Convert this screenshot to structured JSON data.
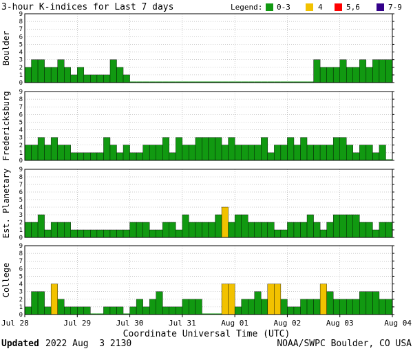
{
  "chart_data": {
    "type": "bar",
    "title": "3-hour K-indices for Last 7 days",
    "legend": {
      "label": "Legend:",
      "items": [
        {
          "label": "0-3",
          "color": "#119911"
        },
        {
          "label": "4",
          "color": "#f2c200"
        },
        {
          "label": "5,6",
          "color": "#ff0000"
        },
        {
          "label": "7-9",
          "color": "#33008a"
        }
      ]
    },
    "xlabel": "Coordinate Universal Time (UTC)",
    "x_ticks": [
      "Jul 28",
      "Jul 29",
      "Jul 30",
      "Jul 31",
      "Aug 01",
      "Aug 02",
      "Aug 03",
      "Aug 04"
    ],
    "y_ticks": [
      "0",
      "1",
      "2",
      "3",
      "4",
      "5",
      "6",
      "7",
      "8",
      "9"
    ],
    "ylim": [
      0,
      9
    ],
    "grid": true,
    "panels": [
      {
        "name": "Boulder",
        "values": [
          2,
          3,
          3,
          2,
          2,
          3,
          2,
          1,
          2,
          1,
          1,
          1,
          1,
          3,
          2,
          1,
          0,
          0,
          0,
          0,
          0,
          0,
          0,
          0,
          0,
          0,
          0,
          0,
          0,
          0,
          0,
          0,
          0,
          0,
          0,
          0,
          0,
          0,
          0,
          0,
          0,
          0,
          0,
          0,
          3,
          2,
          2,
          2,
          3,
          2,
          2,
          3,
          2,
          3,
          3,
          3,
          2,
          2,
          3,
          2,
          0
        ]
      },
      {
        "name": "Fredericksburg",
        "values": [
          2,
          2,
          3,
          2,
          3,
          2,
          2,
          1,
          1,
          1,
          1,
          1,
          3,
          2,
          1,
          2,
          1,
          1,
          2,
          2,
          2,
          3,
          1,
          3,
          2,
          2,
          3,
          3,
          3,
          3,
          2,
          3,
          2,
          2,
          2,
          2,
          3,
          1,
          2,
          2,
          3,
          2,
          3,
          2,
          2,
          2,
          2,
          3,
          3,
          2,
          1,
          2,
          2,
          1,
          2,
          0
        ]
      },
      {
        "name": "Est. Planetary",
        "values": [
          2,
          2,
          3,
          1,
          2,
          2,
          2,
          1,
          1,
          1,
          1,
          1,
          1,
          1,
          1,
          1,
          2,
          2,
          2,
          1,
          1,
          2,
          2,
          1,
          3,
          2,
          2,
          2,
          2,
          3,
          4,
          2,
          3,
          3,
          2,
          2,
          2,
          2,
          1,
          1,
          2,
          2,
          2,
          3,
          2,
          1,
          2,
          3,
          3,
          3,
          3,
          2,
          2,
          1,
          2,
          2
        ]
      },
      {
        "name": "College",
        "values": [
          1,
          3,
          3,
          1,
          4,
          2,
          1,
          1,
          1,
          1,
          0,
          0,
          1,
          1,
          1,
          0,
          1,
          2,
          1,
          2,
          3,
          1,
          1,
          1,
          2,
          2,
          2,
          0,
          0,
          0,
          4,
          4,
          1,
          2,
          2,
          3,
          2,
          4,
          4,
          2,
          1,
          1,
          2,
          2,
          2,
          4,
          3,
          2,
          2,
          2,
          2,
          3,
          3,
          3,
          2,
          2,
          1,
          0
        ]
      }
    ]
  },
  "footer": {
    "updated_label": "Updated",
    "updated_time": "2022 Aug  3 2130",
    "credit": "NOAA/SWPC Boulder, CO USA"
  }
}
